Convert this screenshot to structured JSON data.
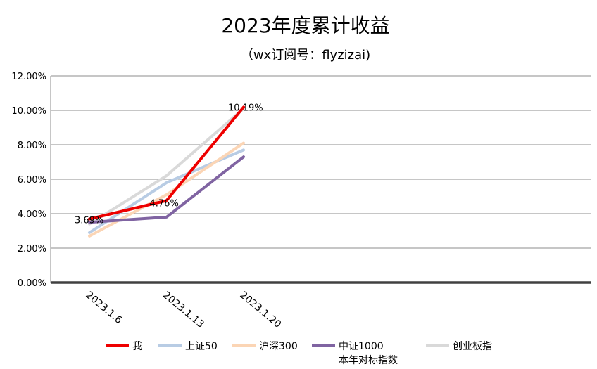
{
  "chart_data": {
    "type": "line",
    "title": "2023年度累计收益",
    "subtitle": "（wx订阅号：flyzizai)",
    "xlabel": "",
    "ylabel": "",
    "categories": [
      "2023.1.6",
      "2023.1.13",
      "2023.1.20"
    ],
    "ylim": [
      0,
      0.12
    ],
    "yticks": [
      0,
      0.02,
      0.04,
      0.06,
      0.08,
      0.1,
      0.12
    ],
    "ytick_labels": [
      "0.00%",
      "2.00%",
      "4.00%",
      "6.00%",
      "8.00%",
      "10.00%",
      "12.00%"
    ],
    "grid": true,
    "legend_position": "bottom",
    "series": [
      {
        "name": "创业板指",
        "color": "#d9d9d9",
        "values": [
          0.034,
          0.062,
          0.101
        ]
      },
      {
        "name": "上证50",
        "color": "#b8cce4",
        "values": [
          0.029,
          0.058,
          0.077
        ]
      },
      {
        "name": "沪深300",
        "color": "#fbd5b5",
        "values": [
          0.027,
          0.051,
          0.081
        ]
      },
      {
        "name": "中证1000",
        "name_line2": "本年对标指数",
        "color": "#8064a2",
        "values": [
          0.035,
          0.038,
          0.073
        ]
      },
      {
        "name": "我",
        "color": "#ee0000",
        "values": [
          0.0369,
          0.0476,
          0.1019
        ],
        "data_labels": [
          "3.69%",
          "4.76%",
          "10.19%"
        ]
      }
    ],
    "legend_order": [
      "我",
      "上证50",
      "沪深300",
      "中证1000",
      "创业板指"
    ]
  }
}
